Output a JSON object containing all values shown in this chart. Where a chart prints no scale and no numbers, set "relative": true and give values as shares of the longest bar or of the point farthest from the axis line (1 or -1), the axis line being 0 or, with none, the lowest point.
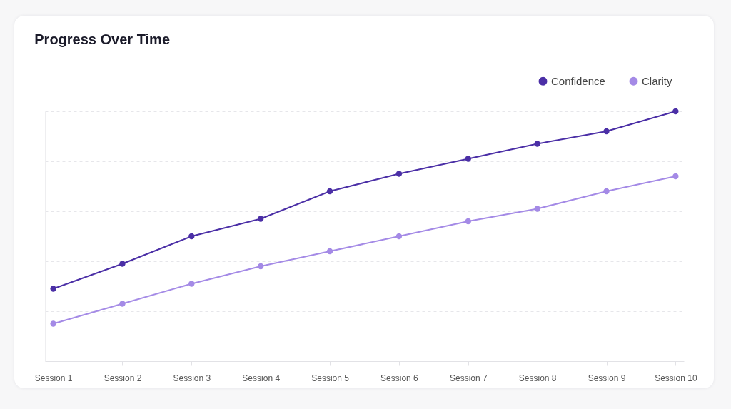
{
  "chart_data": {
    "type": "line",
    "title": "Progress Over Time",
    "relative": true,
    "categories": [
      "Session 1",
      "Session 2",
      "Session 3",
      "Session 4",
      "Session 5",
      "Session 6",
      "Session 7",
      "Session 8",
      "Session 9",
      "Session 10"
    ],
    "series": [
      {
        "name": "Confidence",
        "color": "#4b2fa6",
        "values": [
          0.29,
          0.39,
          0.5,
          0.57,
          0.68,
          0.75,
          0.81,
          0.87,
          0.92,
          1
        ]
      },
      {
        "name": "Clarity",
        "color": "#a48ae6",
        "values": [
          0.15,
          0.23,
          0.31,
          0.38,
          0.44,
          0.5,
          0.56,
          0.61,
          0.68,
          0.74
        ]
      }
    ],
    "marker": "circle",
    "line_style": "solid",
    "grid": "y",
    "legend": "top right"
  }
}
